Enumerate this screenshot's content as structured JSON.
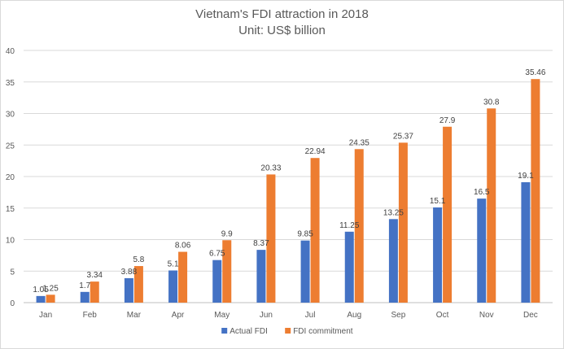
{
  "chart_data": {
    "type": "bar",
    "title": "Vietnam's FDI attraction in 2018",
    "subtitle": "Unit: US$ billion",
    "xlabel": "",
    "ylabel": "",
    "ylim": [
      0,
      40
    ],
    "y_ticks": [
      0,
      5,
      10,
      15,
      20,
      25,
      30,
      35,
      40
    ],
    "grid": true,
    "legend_position": "bottom",
    "categories": [
      "Jan",
      "Feb",
      "Mar",
      "Apr",
      "May",
      "Jun",
      "Jul",
      "Aug",
      "Sep",
      "Oct",
      "Nov",
      "Dec"
    ],
    "series": [
      {
        "name": "Actual FDI",
        "color": "#4472c4",
        "values": [
          1.05,
          1.7,
          3.88,
          5.1,
          6.75,
          8.37,
          9.85,
          11.25,
          13.25,
          15.1,
          16.5,
          19.1
        ],
        "labels": [
          "1.05",
          "1.7",
          "3.88",
          "5.1",
          "6.75",
          "8.37",
          "9.85",
          "11.25",
          "13.25",
          "15.1",
          "16.5",
          "19.1"
        ]
      },
      {
        "name": "FDI commitment",
        "color": "#ed7d31",
        "values": [
          1.25,
          3.34,
          5.8,
          8.06,
          9.9,
          20.33,
          22.94,
          24.35,
          25.37,
          27.9,
          30.8,
          35.46
        ],
        "labels": [
          "1.25",
          "3.34",
          "5.8",
          "8.06",
          "9.9",
          "20.33",
          "22.94",
          "24.35",
          "25.37",
          "27.9",
          "30.8",
          "35.46"
        ]
      }
    ]
  }
}
